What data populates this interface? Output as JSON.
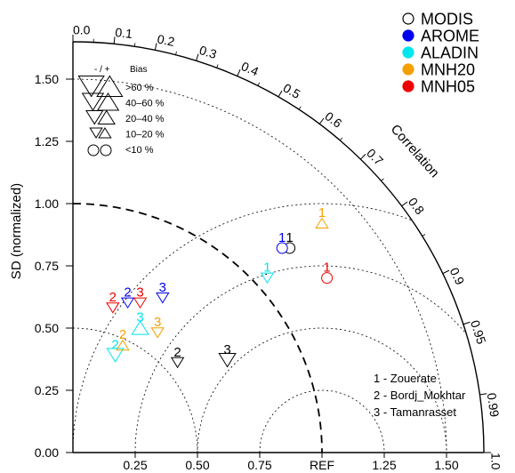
{
  "chart_data": {
    "type": "taylor-diagram",
    "title": "",
    "ylabel": "SD (normalized)",
    "correlation_label": "Correlation",
    "ref_label": "REF",
    "sd_ticks": [
      {
        "v": 0.25,
        "label": "0.25"
      },
      {
        "v": 0.5,
        "label": "0.50"
      },
      {
        "v": 0.75,
        "label": "0.75"
      },
      {
        "v": 1.0,
        "label": "1.00"
      },
      {
        "v": 1.25,
        "label": "1.25"
      },
      {
        "v": 1.5,
        "label": "1.50"
      }
    ],
    "y_ticks": [
      {
        "v": 0.0,
        "label": "0.00"
      },
      {
        "v": 0.25,
        "label": "0.25"
      },
      {
        "v": 0.5,
        "label": "0.50"
      },
      {
        "v": 0.75,
        "label": "0.75"
      },
      {
        "v": 1.0,
        "label": "1.00"
      },
      {
        "v": 1.25,
        "label": "1.25"
      },
      {
        "v": 1.5,
        "label": "1.50"
      }
    ],
    "sd_max": 1.65,
    "corr_ticks": [
      {
        "v": 0.0,
        "label": "0.0"
      },
      {
        "v": 0.1,
        "label": "0.1"
      },
      {
        "v": 0.2,
        "label": "0.2"
      },
      {
        "v": 0.3,
        "label": "0.3"
      },
      {
        "v": 0.4,
        "label": "0.4"
      },
      {
        "v": 0.5,
        "label": "0.5"
      },
      {
        "v": 0.6,
        "label": "0.6"
      },
      {
        "v": 0.7,
        "label": "0.7"
      },
      {
        "v": 0.8,
        "label": "0.8"
      },
      {
        "v": 0.9,
        "label": "0.9"
      },
      {
        "v": 0.95,
        "label": "0.95"
      },
      {
        "v": 0.99,
        "label": "0.99"
      },
      {
        "v": 1.0,
        "label": "1.0"
      }
    ],
    "rmsd_arcs": [
      0.25,
      0.5,
      0.75,
      1.0
    ],
    "ref_arc": 1.0,
    "legend_models": [
      {
        "name": "MODIS",
        "color": "#000000",
        "open": true
      },
      {
        "name": "AROME",
        "color": "#0000ee"
      },
      {
        "name": "ALADIN",
        "color": "#00e5ee"
      },
      {
        "name": "MNH20",
        "color": "#f5a000"
      },
      {
        "name": "MNH05",
        "color": "#ee0000"
      }
    ],
    "bias_legend": {
      "header_sign": "- / +",
      "header_bias": "Bias",
      "rows": [
        {
          "label": ">60 %",
          "size": 4
        },
        {
          "label": "40–60 %",
          "size": 3
        },
        {
          "label": "20–40 %",
          "size": 2
        },
        {
          "label": "10–20 %",
          "size": 1
        },
        {
          "label": "<10 %",
          "size": 0
        }
      ]
    },
    "sites": [
      {
        "label": "1 - Zouerate"
      },
      {
        "label": "2 - Bordj_Mokhtar"
      },
      {
        "label": "3 - Tamanrasset"
      }
    ],
    "points": [
      {
        "model": "MODIS",
        "site": "1",
        "x": 0.87,
        "y": 0.85,
        "bias": "lt10",
        "color": "#000000"
      },
      {
        "model": "AROME",
        "site": "1",
        "x": 0.84,
        "y": 0.85,
        "bias": "lt10",
        "color": "#0000ee"
      },
      {
        "model": "ALADIN",
        "site": "1",
        "x": 0.78,
        "y": 0.73,
        "bias": "neg10-20",
        "color": "#00e5ee"
      },
      {
        "model": "MNH20",
        "site": "1",
        "x": 1.0,
        "y": 0.95,
        "bias": "pos10-20",
        "color": "#f5a000"
      },
      {
        "model": "MNH05",
        "site": "1",
        "x": 1.02,
        "y": 0.73,
        "bias": "lt10",
        "color": "#ee0000"
      },
      {
        "model": "MODIS",
        "site": "2",
        "x": 0.42,
        "y": 0.39,
        "bias": "neg10-20",
        "color": "#000000"
      },
      {
        "model": "AROME",
        "site": "2",
        "x": 0.22,
        "y": 0.63,
        "bias": "neg10-20",
        "color": "#0000ee"
      },
      {
        "model": "ALADIN",
        "site": "2",
        "x": 0.17,
        "y": 0.42,
        "bias": "neg20-40",
        "color": "#00e5ee"
      },
      {
        "model": "MNH20",
        "site": "2",
        "x": 0.2,
        "y": 0.46,
        "bias": "pos10-20",
        "color": "#f5a000"
      },
      {
        "model": "MNH05",
        "site": "2",
        "x": 0.16,
        "y": 0.61,
        "bias": "neg10-20",
        "color": "#ee0000"
      },
      {
        "model": "MODIS",
        "site": "3",
        "x": 0.62,
        "y": 0.4,
        "bias": "neg20-40",
        "color": "#000000"
      },
      {
        "model": "AROME",
        "site": "3",
        "x": 0.36,
        "y": 0.65,
        "bias": "neg10-20",
        "color": "#0000ee"
      },
      {
        "model": "ALADIN",
        "site": "3",
        "x": 0.27,
        "y": 0.53,
        "bias": "pos20-40",
        "color": "#00e5ee"
      },
      {
        "model": "MNH20",
        "site": "3",
        "x": 0.34,
        "y": 0.51,
        "bias": "neg10-20",
        "color": "#f5a000"
      },
      {
        "model": "MNH05",
        "site": "3",
        "x": 0.27,
        "y": 0.63,
        "bias": "neg10-20",
        "color": "#ee0000"
      }
    ]
  }
}
